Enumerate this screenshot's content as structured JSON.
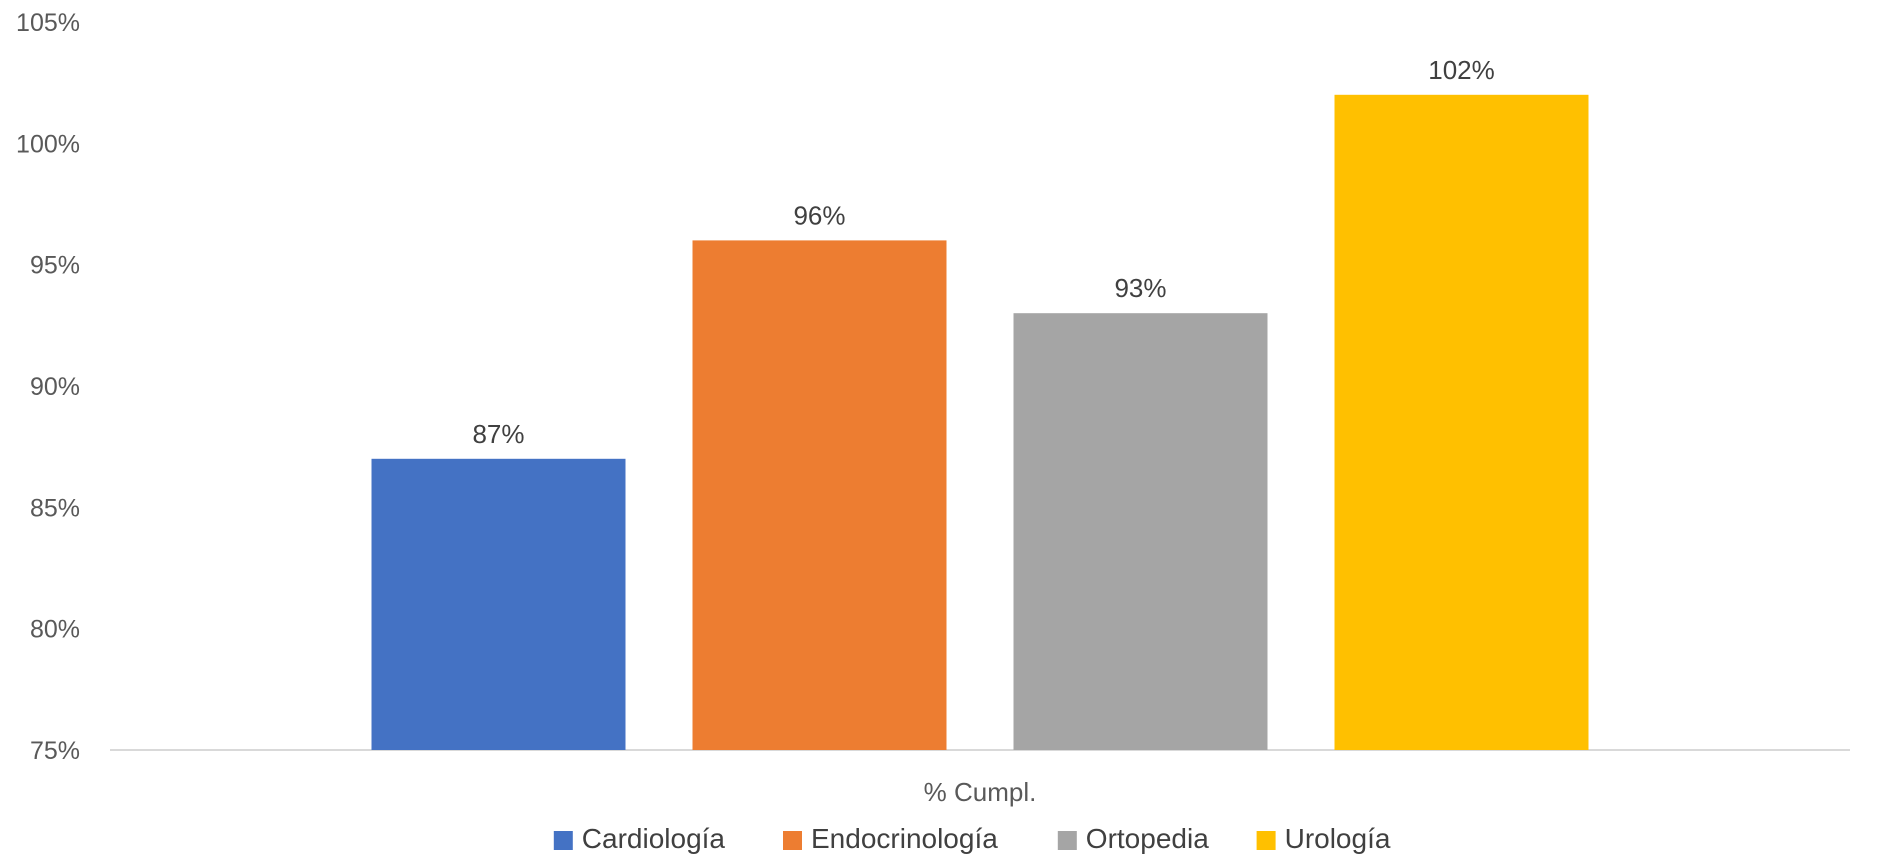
{
  "chart_data": {
    "type": "bar",
    "categories": [
      "% Cumpl."
    ],
    "series": [
      {
        "name": "Cardiología",
        "values": [
          87
        ],
        "label": "87%",
        "color": "#4472C4"
      },
      {
        "name": "Endocrinología",
        "values": [
          96
        ],
        "label": "96%",
        "color": "#ED7D31"
      },
      {
        "name": "Ortopedia",
        "values": [
          93
        ],
        "label": "93%",
        "color": "#A5A5A5"
      },
      {
        "name": "Urología",
        "values": [
          102
        ],
        "label": "102%",
        "color": "#FFC000"
      }
    ],
    "y_ticks": [
      "75%",
      "80%",
      "85%",
      "90%",
      "95%",
      "100%",
      "105%"
    ],
    "ylim": [
      75,
      105
    ],
    "grid": false,
    "legend_position": "bottom",
    "axis_color": "#d9d9d9"
  }
}
